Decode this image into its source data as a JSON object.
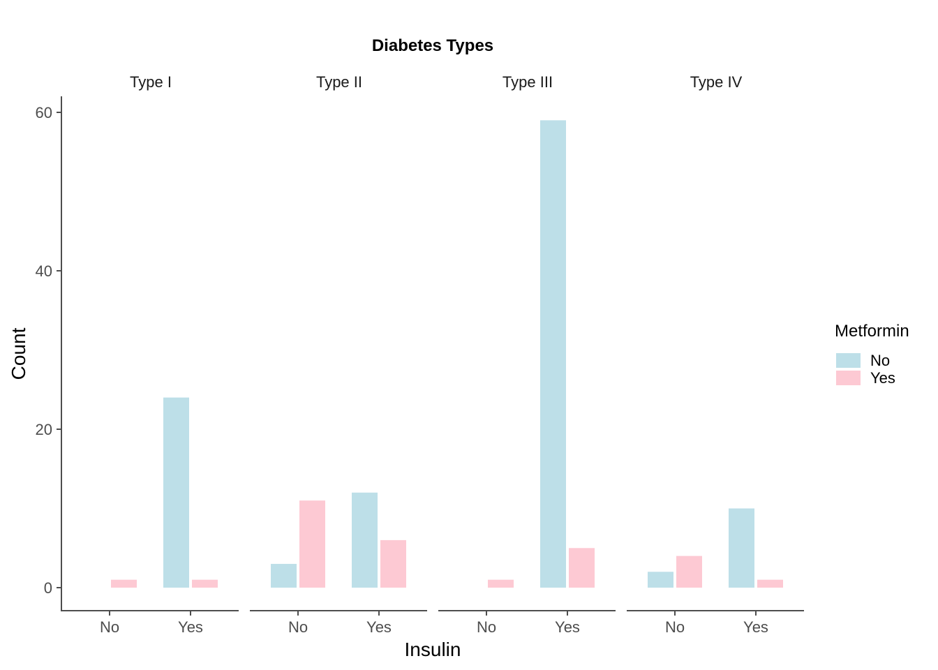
{
  "chart_data": {
    "type": "bar",
    "title": "Diabetes Types",
    "xlabel": "Insulin",
    "ylabel": "Count",
    "ylim": [
      0,
      62
    ],
    "yticks": [
      0,
      20,
      40,
      60
    ],
    "grid": false,
    "legend": {
      "title": "Metformin",
      "placement": "right",
      "entries": [
        {
          "label": "No",
          "color": "#bddfe8"
        },
        {
          "label": "Yes",
          "color": "#fdc9d3"
        }
      ]
    },
    "categories": [
      "No",
      "Yes"
    ],
    "facets": [
      {
        "label": "Type I",
        "series": [
          {
            "name": "No",
            "values": [
              0,
              24
            ]
          },
          {
            "name": "Yes",
            "values": [
              1,
              1
            ]
          }
        ]
      },
      {
        "label": "Type II",
        "series": [
          {
            "name": "No",
            "values": [
              3,
              12
            ]
          },
          {
            "name": "Yes",
            "values": [
              11,
              6
            ]
          }
        ]
      },
      {
        "label": "Type III",
        "series": [
          {
            "name": "No",
            "values": [
              0,
              59
            ]
          },
          {
            "name": "Yes",
            "values": [
              1,
              5
            ]
          }
        ]
      },
      {
        "label": "Type IV",
        "series": [
          {
            "name": "No",
            "values": [
              2,
              10
            ]
          },
          {
            "name": "Yes",
            "values": [
              4,
              1
            ]
          }
        ]
      }
    ]
  }
}
